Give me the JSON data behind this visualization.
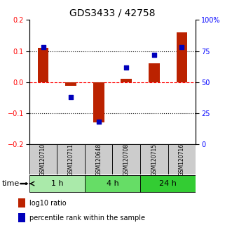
{
  "title": "GDS3433 / 42758",
  "samples": [
    "GSM120710",
    "GSM120711",
    "GSM120648",
    "GSM120708",
    "GSM120715",
    "GSM120716"
  ],
  "groups": [
    {
      "label": "1 h",
      "indices": [
        0,
        1
      ],
      "color": "#aaeaaa"
    },
    {
      "label": "4 h",
      "indices": [
        2,
        3
      ],
      "color": "#66dd66"
    },
    {
      "label": "24 h",
      "indices": [
        4,
        5
      ],
      "color": "#33cc33"
    }
  ],
  "log10_ratio": [
    0.11,
    -0.012,
    -0.13,
    0.012,
    0.06,
    0.16
  ],
  "percentile_rank": [
    78,
    38,
    18,
    62,
    72,
    78
  ],
  "bar_color": "#bb2200",
  "dot_color": "#0000bb",
  "left_ylim": [
    -0.2,
    0.2
  ],
  "right_ylim": [
    0,
    100
  ],
  "left_yticks": [
    -0.2,
    -0.1,
    0.0,
    0.1,
    0.2
  ],
  "right_yticks": [
    0,
    25,
    50,
    75,
    100
  ],
  "right_yticklabels": [
    "0",
    "25",
    "50",
    "75",
    "100%"
  ],
  "hlines_dotted": [
    0.1,
    -0.1
  ],
  "hline_dashed": 0.0,
  "title_fontsize": 10,
  "sample_bg": "#cccccc",
  "bar_width": 0.4
}
